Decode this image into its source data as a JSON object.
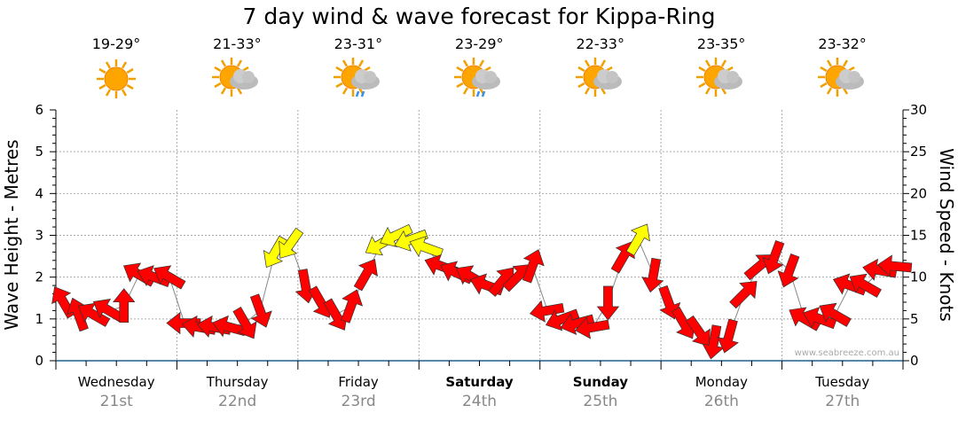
{
  "title": "7 day wind & wave forecast for Kippa-Ring",
  "days": [
    {
      "name": "Wednesday",
      "date": "21st",
      "temp": "19-29°",
      "icon": "sunny-icon",
      "bold": false
    },
    {
      "name": "Thursday",
      "date": "22nd",
      "temp": "21-33°",
      "icon": "partly-cloudy-icon",
      "bold": false
    },
    {
      "name": "Friday",
      "date": "23rd",
      "temp": "23-31°",
      "icon": "sun-cloud-rain-icon",
      "bold": false
    },
    {
      "name": "Saturday",
      "date": "24th",
      "temp": "23-29°",
      "icon": "sun-cloud-rain-icon",
      "bold": true
    },
    {
      "name": "Sunday",
      "date": "25th",
      "temp": "22-33°",
      "icon": "partly-cloudy-icon",
      "bold": true
    },
    {
      "name": "Monday",
      "date": "26th",
      "temp": "23-35°",
      "icon": "partly-cloudy-icon",
      "bold": false
    },
    {
      "name": "Tuesday",
      "date": "27th",
      "temp": "23-32°",
      "icon": "partly-cloudy-icon",
      "bold": false
    }
  ],
  "credit": "www.seabreeze.com.au",
  "colors": {
    "low_wind": "#ff0000",
    "high_wind": "#ffff00",
    "axis": "#1f5f8b"
  },
  "chart_data": {
    "type": "scatter",
    "title": "7 day wind & wave forecast for Kippa-Ring",
    "ylabel_left": "Wave Height - Metres",
    "ylabel_right": "Wind Speed - Knots",
    "ylim_left": [
      0,
      6
    ],
    "ylim_right": [
      0,
      30
    ],
    "yticks_left": [
      "0",
      "1",
      "2",
      "3",
      "4",
      "5",
      "6"
    ],
    "yticks_right": [
      "0",
      "5",
      "10",
      "15",
      "20",
      "25",
      "30"
    ],
    "grid": true,
    "x_interval_hours": 3,
    "yellow_threshold_knots": 12.5,
    "series": [
      {
        "name": "Wind Speed (knots)",
        "values": [
          7,
          5.5,
          5.5,
          6,
          6.5,
          10.3,
          10,
          10,
          4.5,
          4,
          4,
          4,
          4.5,
          6,
          13,
          14,
          9,
          7,
          5.5,
          6.5,
          10.3,
          14,
          15,
          14.5,
          13.5,
          11.3,
          10.5,
          10,
          9,
          9.5,
          10,
          11.3,
          6,
          5,
          4.5,
          4,
          7,
          12.4,
          14.5,
          10.3,
          7,
          4.5,
          3.5,
          2.3,
          3,
          8,
          11.3,
          12.4,
          10.8,
          5,
          5,
          5.5,
          9,
          9,
          10.8,
          11.3
        ],
        "direction_deg": [
          330,
          340,
          300,
          300,
          0,
          300,
          290,
          300,
          270,
          280,
          280,
          285,
          150,
          160,
          210,
          215,
          170,
          150,
          150,
          20,
          30,
          240,
          245,
          250,
          290,
          290,
          295,
          300,
          290,
          40,
          45,
          20,
          260,
          250,
          255,
          260,
          180,
          30,
          30,
          190,
          160,
          150,
          145,
          190,
          195,
          45,
          50,
          200,
          200,
          300,
          290,
          300,
          290,
          300,
          280,
          275
        ]
      }
    ]
  }
}
